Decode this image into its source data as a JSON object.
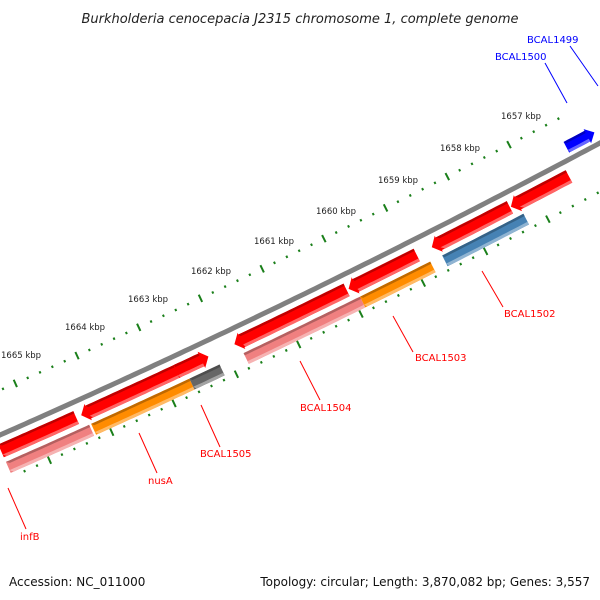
{
  "title": "Burkholderia cenocepacia J2315 chromosome 1, complete genome",
  "ticks": [
    "1657 kbp",
    "1658 kbp",
    "1659 kbp",
    "1660 kbp",
    "1661 kbp",
    "1662 kbp",
    "1663 kbp",
    "1664 kbp",
    "1665 kbp"
  ],
  "genes": [
    {
      "label": "BCAL1499",
      "color": "#0000ff"
    },
    {
      "label": "BCAL1500",
      "color": "#0000ff"
    },
    {
      "label": "BCAL1502",
      "color": "#ff0000"
    },
    {
      "label": "BCAL1503",
      "color": "#ff0000"
    },
    {
      "label": "BCAL1504",
      "color": "#ff0000"
    },
    {
      "label": "BCAL1505",
      "color": "#ff0000"
    },
    {
      "label": "nusA",
      "color": "#ff0000"
    },
    {
      "label": "infB",
      "color": "#ff0000"
    }
  ],
  "colors": {
    "backbone": "#808080",
    "ticks": "#1a7f1a",
    "cds_forward": "#ff0000",
    "rna_pink": "#f08080",
    "orange": "#ff8c00",
    "gray": "#666666",
    "steelblue": "#4682b4",
    "blue": "#0000ff"
  },
  "footer": {
    "accession": "Accession: NC_011000",
    "summary": "Topology: circular; Length: 3,870,082 bp; Genes: 3,557"
  }
}
